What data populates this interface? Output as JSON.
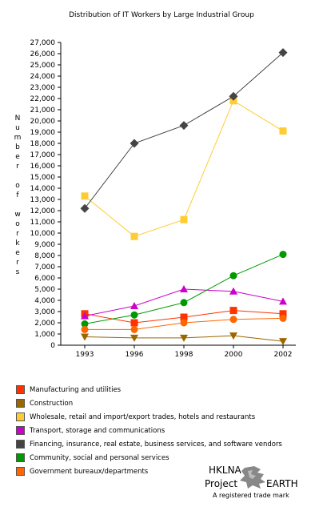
{
  "chart_data": {
    "type": "line",
    "title": "Distribution of IT Workers by Large Industrial Group",
    "ylabel": "Number of workers",
    "xlabel": "",
    "categories": [
      "1993",
      "1996",
      "1998",
      "2000",
      "2002"
    ],
    "ylim": [
      0,
      27000
    ],
    "ytick_step": 1000,
    "grid": false,
    "legend_position": "bottom",
    "series": [
      {
        "name": "Manufacturing and utilities",
        "color": "#ff3300",
        "marker": "square",
        "values": [
          2800,
          2000,
          2500,
          3100,
          2800
        ]
      },
      {
        "name": "Construction",
        "color": "#996600",
        "marker": "triangle-down",
        "values": [
          750,
          650,
          650,
          850,
          350
        ]
      },
      {
        "name": "Wholesale, retail and import/export trades, hotels and restaurants",
        "color": "#ffcc33",
        "marker": "square",
        "values": [
          13300,
          9700,
          11200,
          21800,
          19100
        ]
      },
      {
        "name": "Transport, storage and communications",
        "color": "#cc00cc",
        "marker": "triangle-up",
        "values": [
          2600,
          3500,
          5000,
          4800,
          3900
        ]
      },
      {
        "name": "Financing, insurance, real estate, business services, and software vendors",
        "color": "#444444",
        "marker": "diamond",
        "values": [
          12200,
          18000,
          19600,
          22200,
          26100
        ]
      },
      {
        "name": "Community, social and personal services",
        "color": "#009900",
        "marker": "circle",
        "values": [
          1900,
          2700,
          3800,
          6200,
          8100
        ]
      },
      {
        "name": "Government bureaux/departments",
        "color": "#ff6600",
        "marker": "circle",
        "values": [
          1400,
          1400,
          2000,
          2300,
          2400
        ]
      }
    ]
  },
  "brand": {
    "line1": "HKLNA",
    "line2a": "Project",
    "line2b": "EARTH",
    "line3": "A registered trade mark"
  }
}
